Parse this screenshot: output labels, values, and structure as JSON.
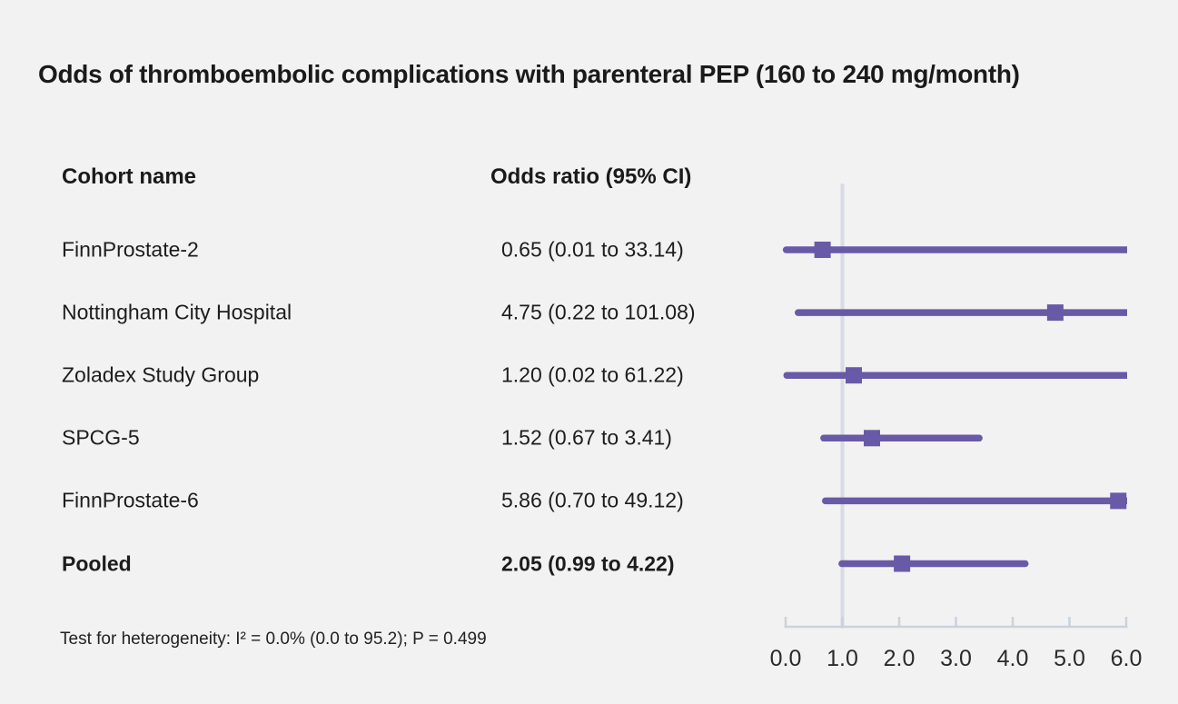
{
  "title": "Odds of thromboembolic complications with parenteral PEP (160 to 240 mg/month)",
  "columns": {
    "cohort": "Cohort name",
    "odds_ratio": "Odds ratio (95% CI)"
  },
  "footnote": "Test for heterogeneity: I² = 0.0% (0.0 to 95.2); P = 0.499",
  "colors": {
    "accent_purple": "#695aa7",
    "reference_line": "#d7dbe4",
    "axis": "#cbd2dc",
    "text": "#1a1a1a",
    "background": "#f2f2f2"
  },
  "chart_data": {
    "type": "forest",
    "title": "Odds of thromboembolic complications with parenteral PEP (160 to 240 mg/month)",
    "xlabel": "",
    "ylabel": "",
    "xlim": [
      0.0,
      6.0
    ],
    "xticks": [
      0,
      1,
      2,
      3,
      4,
      5,
      6
    ],
    "tick_labels": [
      "0.0",
      "1.0",
      "2.0",
      "3.0",
      "4.0",
      "5.0",
      "6.0"
    ],
    "reference_line_x": 1.0,
    "grid": false,
    "legend": "none",
    "rows": [
      {
        "cohort": "FinnProstate-2",
        "label": "0.65 (0.01 to 33.14)",
        "or": 0.65,
        "lo": 0.01,
        "hi": 33.14,
        "bold": false
      },
      {
        "cohort": "Nottingham City Hospital",
        "label": "4.75 (0.22 to 101.08)",
        "or": 4.75,
        "lo": 0.22,
        "hi": 101.08,
        "bold": false
      },
      {
        "cohort": "Zoladex Study Group",
        "label": "1.20 (0.02 to 61.22)",
        "or": 1.2,
        "lo": 0.02,
        "hi": 61.22,
        "bold": false
      },
      {
        "cohort": "SPCG-5",
        "label": "1.52 (0.67 to 3.41)",
        "or": 1.52,
        "lo": 0.67,
        "hi": 3.41,
        "bold": false
      },
      {
        "cohort": "FinnProstate-6",
        "label": "5.86 (0.70 to 49.12)",
        "or": 5.86,
        "lo": 0.7,
        "hi": 49.12,
        "bold": false
      },
      {
        "cohort": "Pooled",
        "label": "2.05 (0.99 to 4.22)",
        "or": 2.05,
        "lo": 0.99,
        "hi": 4.22,
        "bold": true
      }
    ],
    "heterogeneity_note": "Test for heterogeneity: I² = 0.0% (0.0 to 95.2); P = 0.499"
  }
}
